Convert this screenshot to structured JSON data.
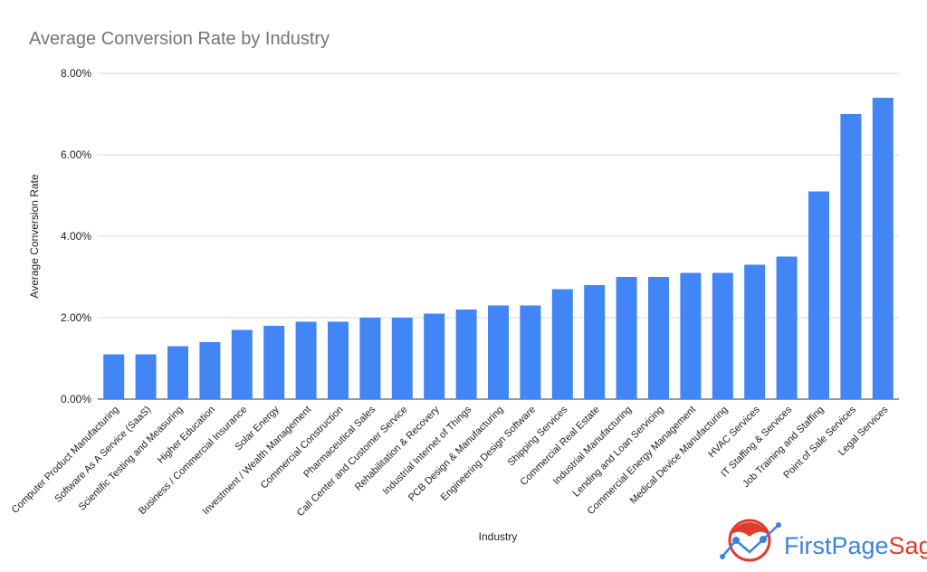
{
  "chart_data": {
    "type": "bar",
    "title": "Average Conversion Rate by Industry",
    "xlabel": "Industry",
    "ylabel": "Average Conversion Rate",
    "ylim": [
      0,
      8
    ],
    "yticks": [
      "0.00%",
      "2.00%",
      "4.00%",
      "6.00%",
      "8.00%"
    ],
    "grid": true,
    "bar_color": "#4285f4",
    "categories": [
      "Computer Product Manufacturing",
      "Software As A Service (SaaS)",
      "Scientific Testing and Measuring",
      "Higher Education",
      "Business / Commercial Insurance",
      "Solar Energy",
      "Investment / Wealth Management",
      "Commercial Construction",
      "Pharmaceutical Sales",
      "Call Center and Customer Service",
      "Rehabilitation & Recovery",
      "Industrial Internet of Things",
      "PCB Design & Manufacturing",
      "Engineering Design Software",
      "Shipping Services",
      "Commercial Real Estate",
      "Industrial Manufacturing",
      "Lending and Loan Servicing",
      "Commercial Energy Management",
      "Medical Device Manufacturing",
      "HVAC Services",
      "IT Staffing & Services",
      "Job Training and Staffing",
      "Point of Sale Services",
      "Legal Services"
    ],
    "values": [
      1.1,
      1.1,
      1.3,
      1.4,
      1.7,
      1.8,
      1.9,
      1.9,
      2.0,
      2.0,
      2.1,
      2.2,
      2.3,
      2.3,
      2.7,
      2.8,
      3.0,
      3.0,
      3.1,
      3.1,
      3.3,
      3.5,
      5.1,
      7.0,
      7.4
    ]
  },
  "logo": {
    "text_first": "FirstPage",
    "text_second": "Sage",
    "blue": "#3b82e0",
    "red": "#e03a2e"
  }
}
